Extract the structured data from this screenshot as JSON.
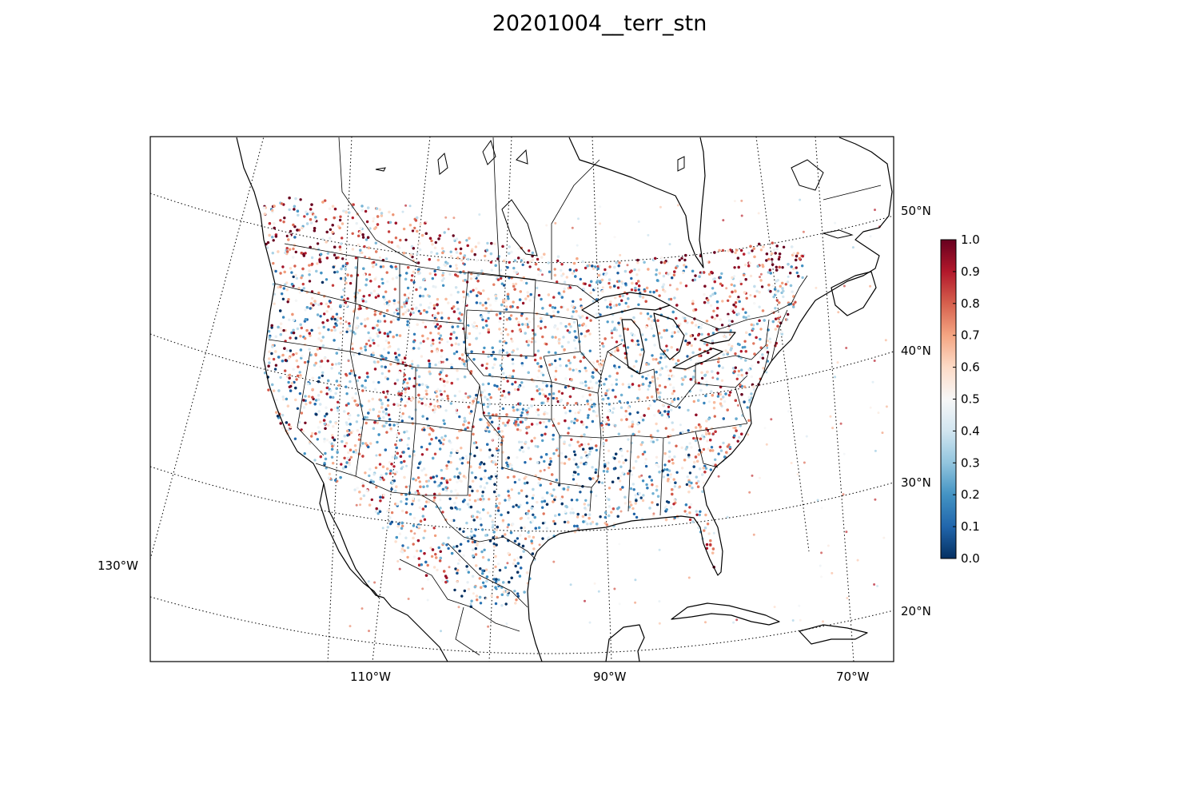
{
  "title": "20201004__terr_stn",
  "map": {
    "lat_labels": [
      "50°N",
      "40°N",
      "30°N",
      "20°N"
    ],
    "lon_labels": [
      "130°W",
      "110°W",
      "90°W",
      "70°W"
    ],
    "grid_style": "dotted",
    "coastline_color": "#000000"
  },
  "colorbar": {
    "ticks": [
      "0.0",
      "0.1",
      "0.2",
      "0.3",
      "0.4",
      "0.5",
      "0.6",
      "0.7",
      "0.8",
      "0.9",
      "1.0"
    ],
    "range": [
      0.0,
      1.0
    ],
    "colormap": "RdBu_r",
    "stops": [
      "#053061",
      "#2166ac",
      "#4393c3",
      "#92c5de",
      "#d1e5f0",
      "#f7f7f7",
      "#fddbc7",
      "#f4a582",
      "#d6604d",
      "#b2182b",
      "#67001f"
    ]
  }
}
